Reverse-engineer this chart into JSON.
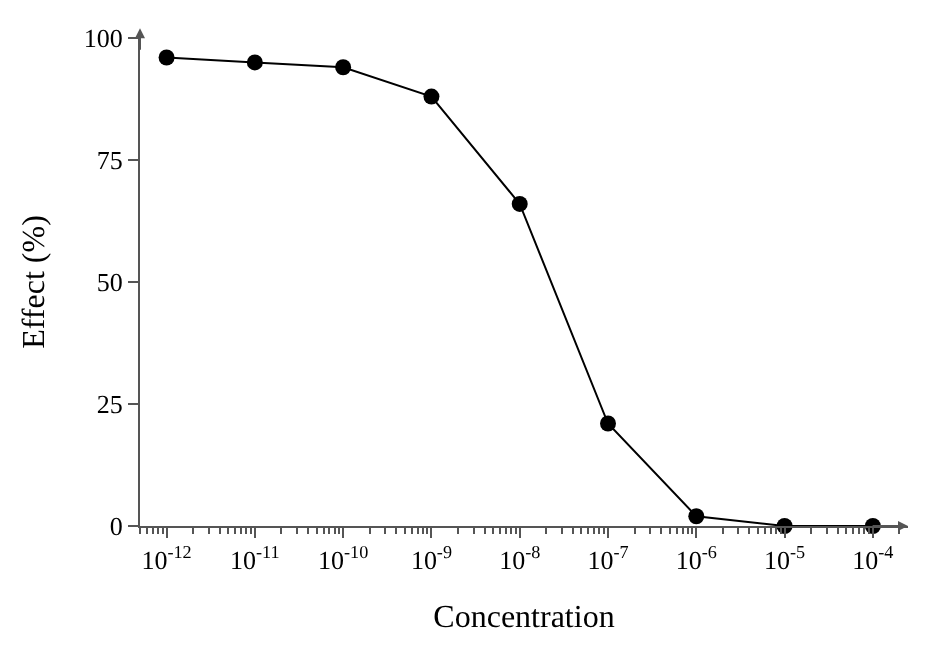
{
  "chart_data": {
    "type": "line",
    "xlabel": "Concentration",
    "ylabel": "Effect (%)",
    "x": [
      1e-12,
      1e-11,
      1e-10,
      1e-09,
      1e-08,
      1e-07,
      1e-06,
      1e-05,
      0.0001
    ],
    "series": [
      {
        "color": "#000000",
        "values": [
          96,
          95,
          94,
          88,
          66,
          21,
          2,
          0,
          0
        ]
      }
    ],
    "log": "x",
    "marker": "circle",
    "line_style": "solid",
    "xlim": [
      5e-13,
      0.00025
    ],
    "xticks": [
      {
        "value": 1e-12,
        "label": "10$^{-12}$"
      },
      {
        "value": 1e-11,
        "label": "10$^{-11}$"
      },
      {
        "value": 1e-10,
        "label": "10$^{-10}$"
      },
      {
        "value": 1e-09,
        "label": "10$^{-9}$"
      },
      {
        "value": 1e-08,
        "label": "10$^{-8}$"
      },
      {
        "value": 1e-07,
        "label": "10$^{-7}$"
      },
      {
        "value": 1e-06,
        "label": "10$^{-6}$"
      },
      {
        "value": 1e-05,
        "label": "10$^{-5}$"
      },
      {
        "value": 0.0001,
        "label": "10$^{-4}$"
      }
    ],
    "ylim": [
      0,
      100
    ],
    "yticks": [
      0,
      25,
      50,
      75,
      100
    ]
  }
}
